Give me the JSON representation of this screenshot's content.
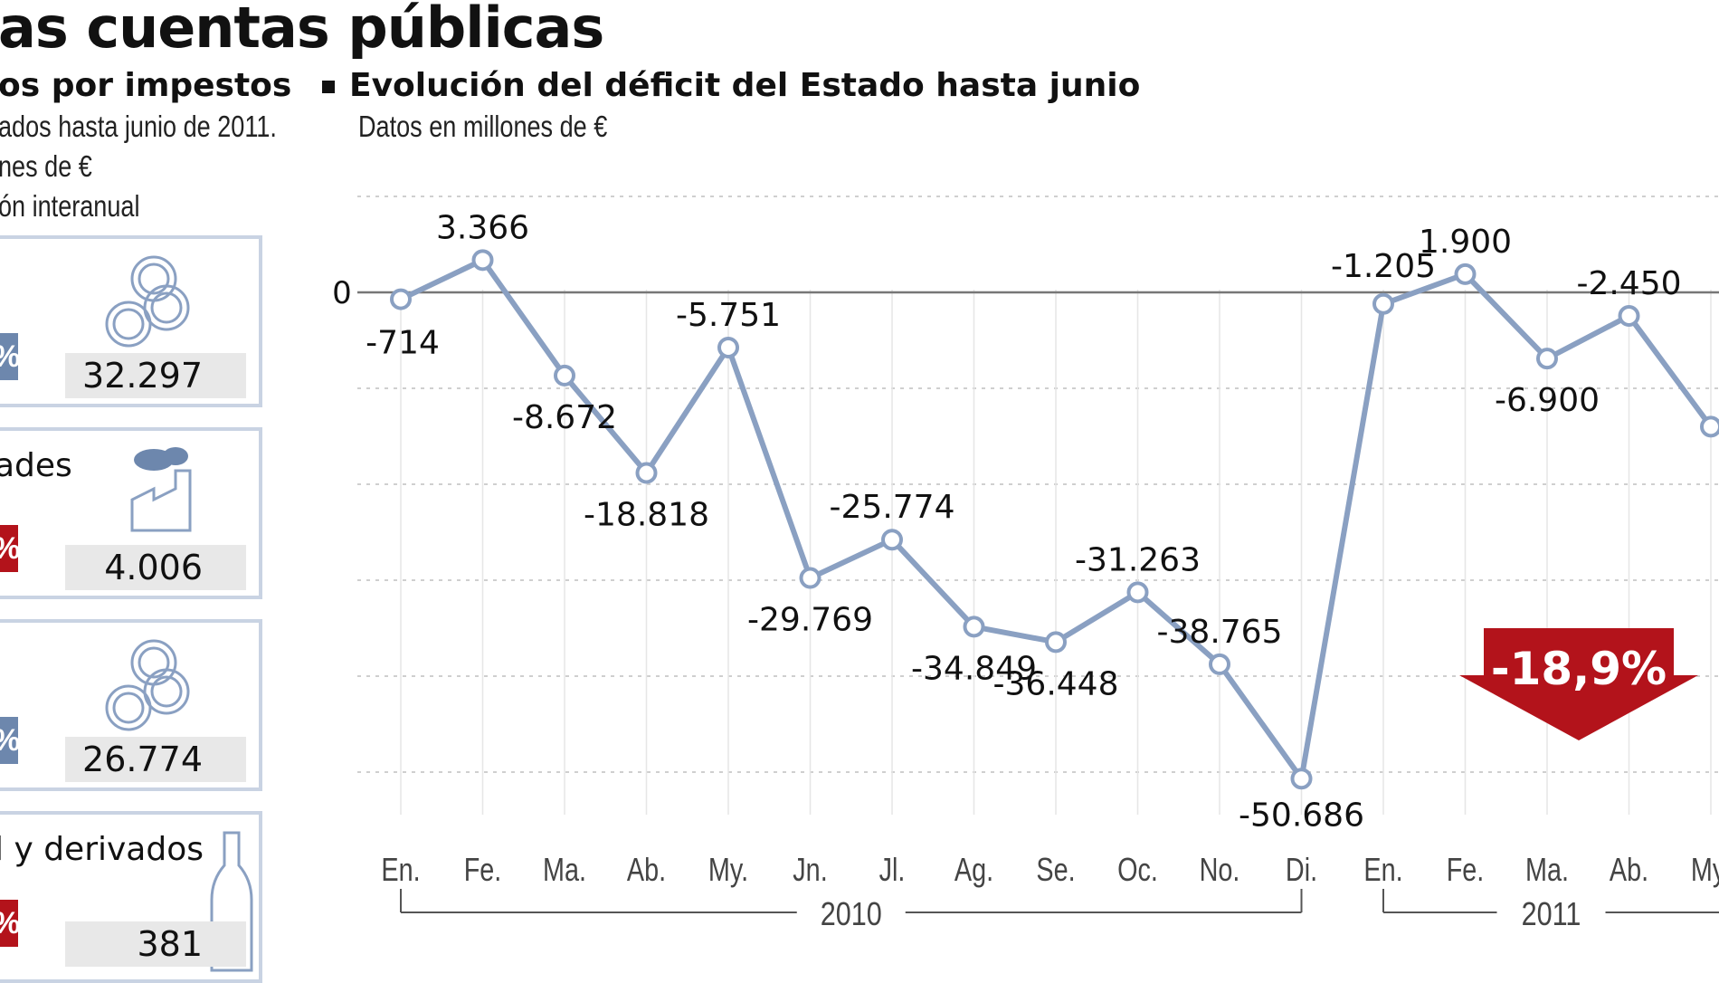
{
  "headline": "as cuentas públicas",
  "left_panel": {
    "title": "os por impestos",
    "lines": [
      "ados hasta junio de 2011.",
      "nes de €",
      "ón interanual"
    ],
    "boxes": [
      {
        "label": "",
        "value": "32.297",
        "pct_text": "%",
        "direction": "up",
        "icon": "coins-icon"
      },
      {
        "label": "ades",
        "value": "4.006",
        "pct_text": "%",
        "direction": "down",
        "icon": "factory-icon"
      },
      {
        "label": "",
        "value": "26.774",
        "pct_text": "%",
        "direction": "up",
        "icon": "coins-icon"
      },
      {
        "label": "l y derivados",
        "value": "381",
        "pct_text": "%",
        "direction": "down",
        "icon": "bottle-icon"
      }
    ]
  },
  "chart_title": "Evolución del déficit del Estado hasta junio",
  "chart_subtitle": "Datos en millones de €",
  "chart_data": {
    "type": "line",
    "title": "Evolución del déficit del Estado hasta junio",
    "subtitle": "Datos en millones de €",
    "categories": [
      "En.",
      "Fe.",
      "Ma.",
      "Ab.",
      "My.",
      "Jn.",
      "Jl.",
      "Ag.",
      "Se.",
      "Oc.",
      "No.",
      "Di.",
      "En.",
      "Fe.",
      "Ma.",
      "Ab.",
      "My."
    ],
    "values": [
      -714,
      3366,
      -8672,
      -18818,
      -5751,
      -29769,
      -25774,
      -34849,
      -36448,
      -31263,
      -38765,
      -50686,
      -1205,
      1900,
      -6900,
      -2450,
      -14000
    ],
    "labels": [
      "-714",
      "3.366",
      "-8.672",
      "-18.818",
      "-5.751",
      "-29.769",
      "-25.774",
      "-34.849",
      "-36.448",
      "-31.263",
      "-38.765",
      "-50.686",
      "-1.205",
      "1.900",
      "-6.900",
      "-2.450",
      "-"
    ],
    "year_groups": [
      {
        "label": "2010",
        "from": 0,
        "to": 11
      },
      {
        "label": "2011",
        "from": 12,
        "to": 16
      }
    ],
    "y_tick_labels": [
      "0"
    ],
    "ylim": [
      -55000,
      7000
    ],
    "grid": "horizontal-dashed",
    "highlight": {
      "text": "-18,9%",
      "direction": "down",
      "color": "#b3131b"
    },
    "line_color": "#8aa0c2"
  },
  "colors": {
    "accent_up": "#6d87ad",
    "accent_down": "#b3131b",
    "box_border": "#c9d3e3"
  }
}
